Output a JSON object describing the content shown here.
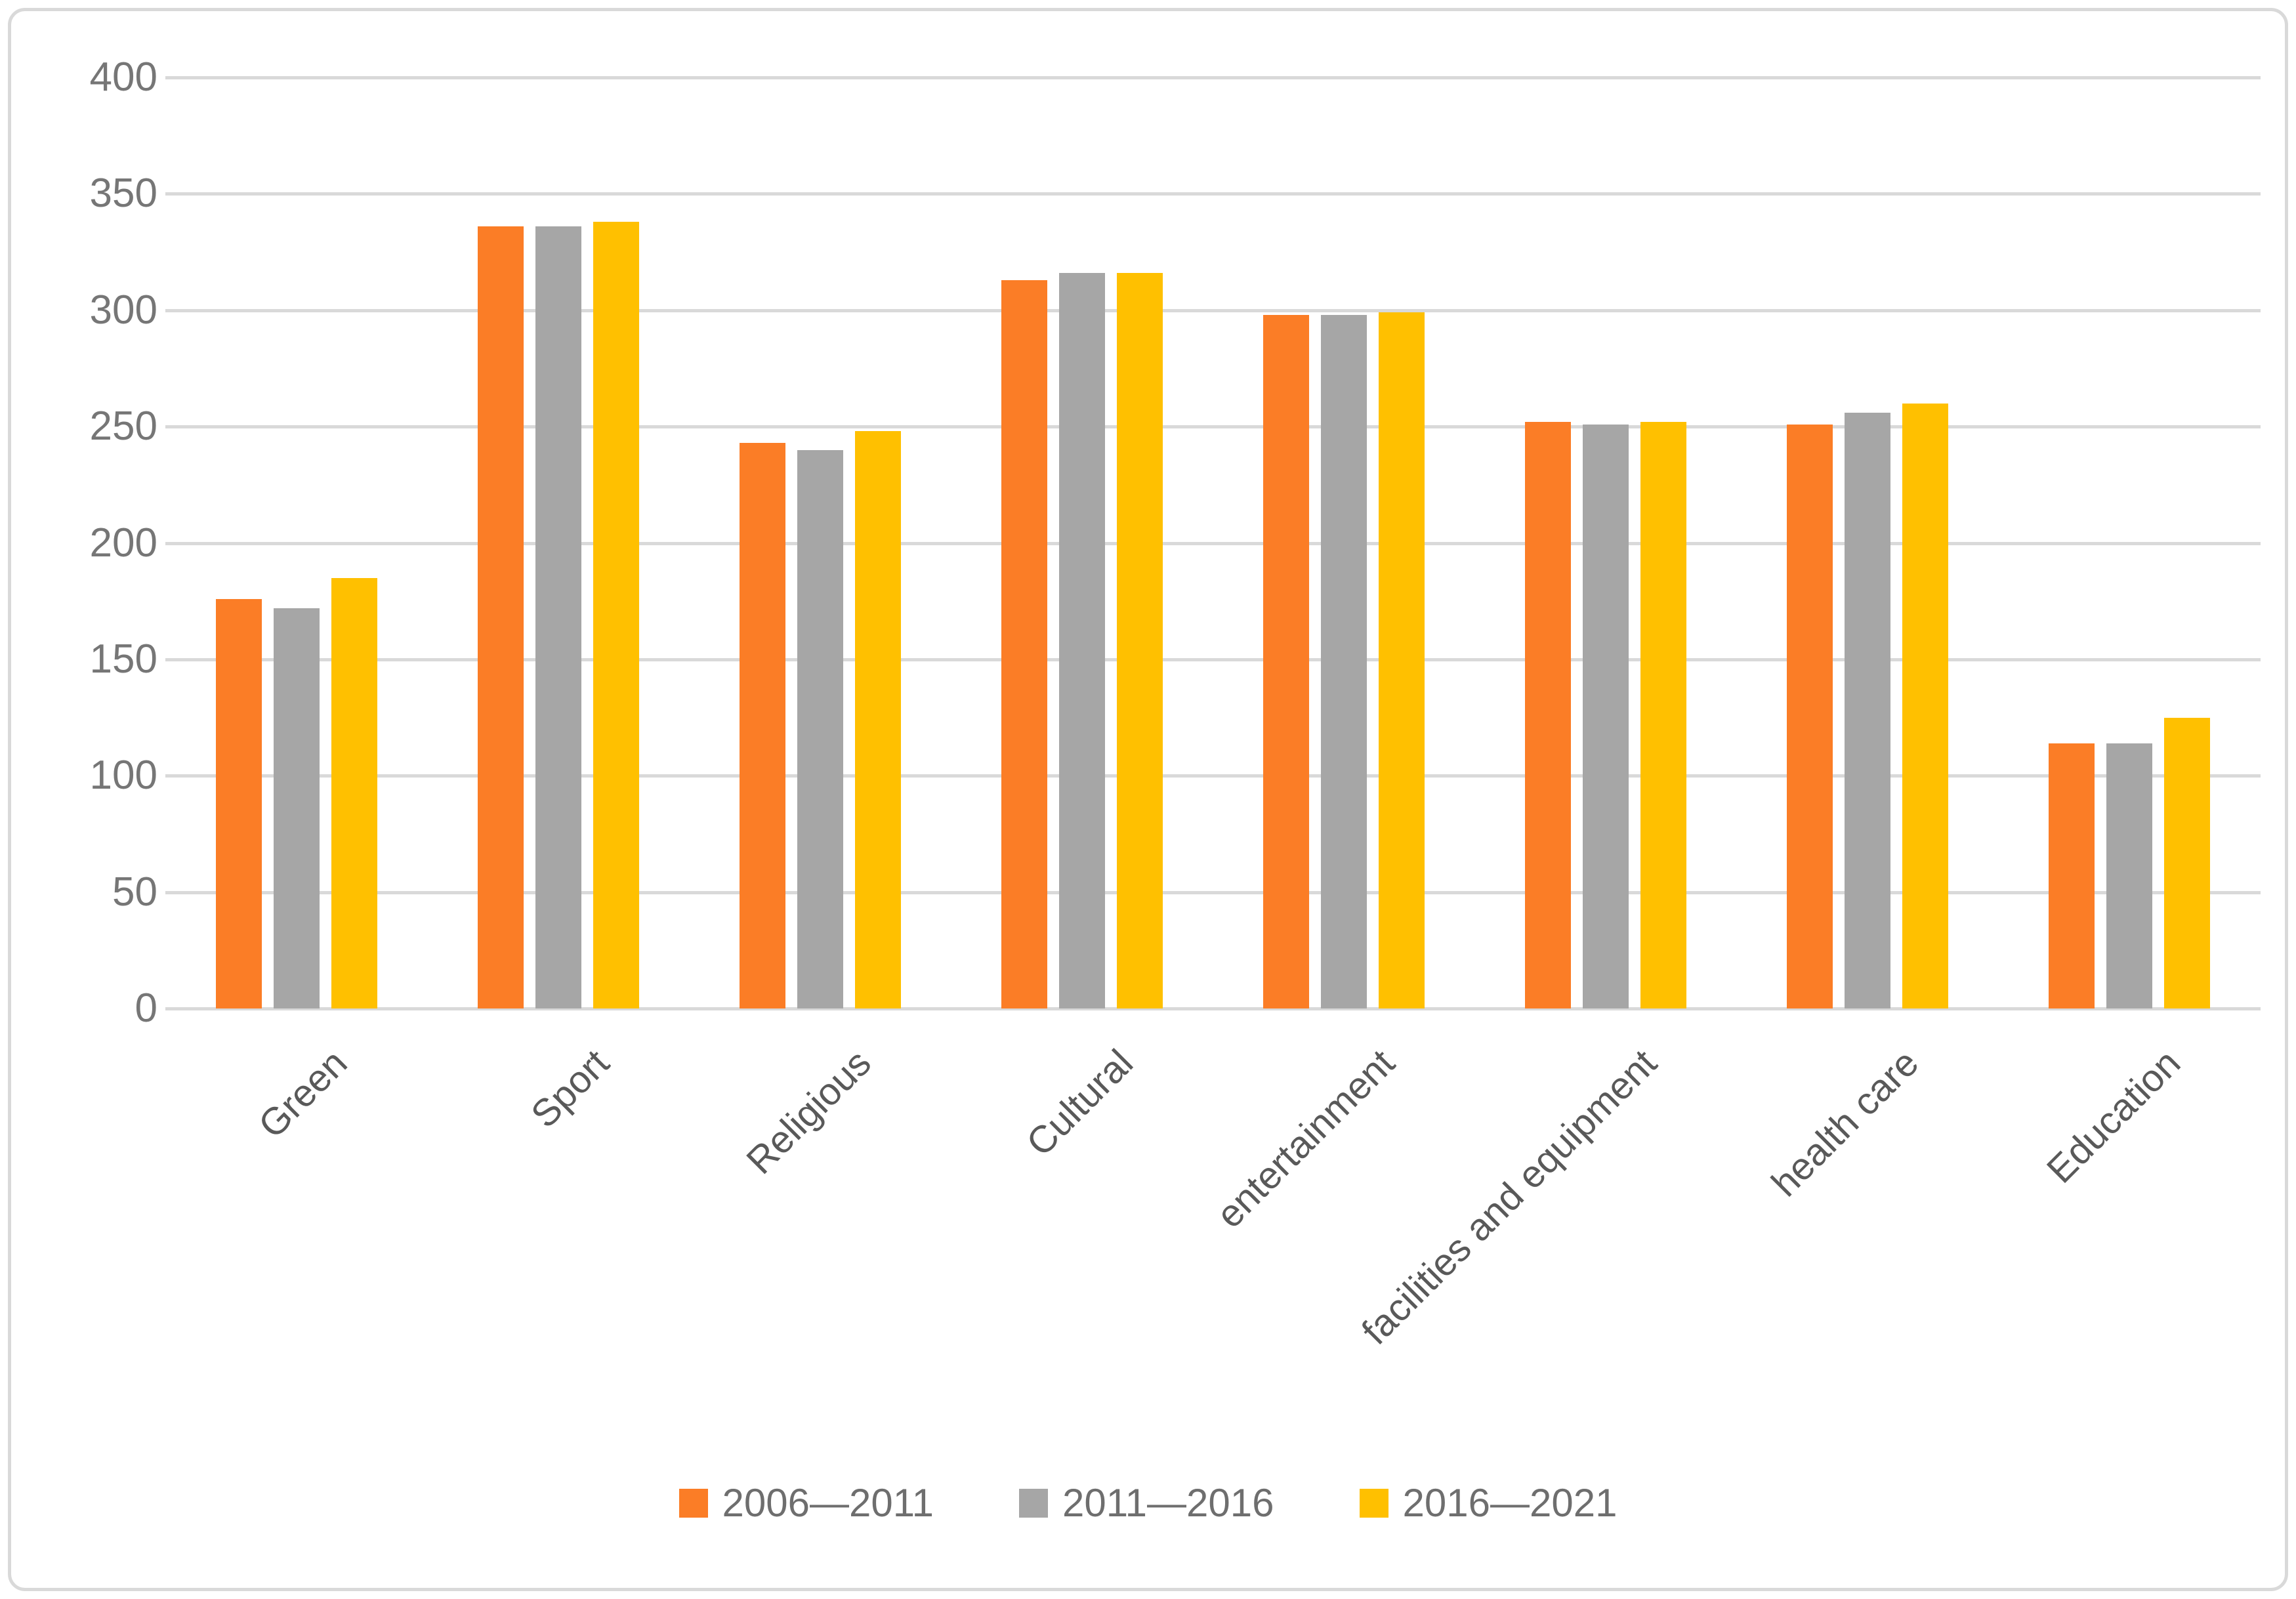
{
  "chart_data": {
    "type": "bar",
    "title": "",
    "xlabel": "",
    "ylabel": "",
    "categories": [
      "Green",
      "Sport",
      "Religious",
      "Cultural",
      "entertainment",
      "facilities and equipment",
      "health care",
      "Education"
    ],
    "series": [
      {
        "name": "2006—2011",
        "color": "#FB7D26",
        "values": [
          176,
          336,
          243,
          313,
          298,
          252,
          251,
          114
        ]
      },
      {
        "name": "2011—2016",
        "color": "#A6A6A6",
        "values": [
          172,
          336,
          240,
          316,
          298,
          251,
          256,
          114
        ]
      },
      {
        "name": "2016—2021",
        "color": "#FFC000",
        "values": [
          185,
          338,
          248,
          316,
          299,
          252,
          260,
          125
        ]
      }
    ],
    "ylim": [
      0,
      400
    ],
    "ytick_step": 50,
    "ytick_labels": [
      "0",
      "50",
      "100",
      "150",
      "200",
      "250",
      "300",
      "350",
      "400"
    ],
    "grid": true,
    "gridline_color": "#D9D9D9",
    "axis_text_color": "#767676",
    "category_text_color": "#595959",
    "legend_position": "bottom",
    "legend_entries": [
      "2006—2011",
      "2011—2016",
      "2016—2021"
    ]
  }
}
